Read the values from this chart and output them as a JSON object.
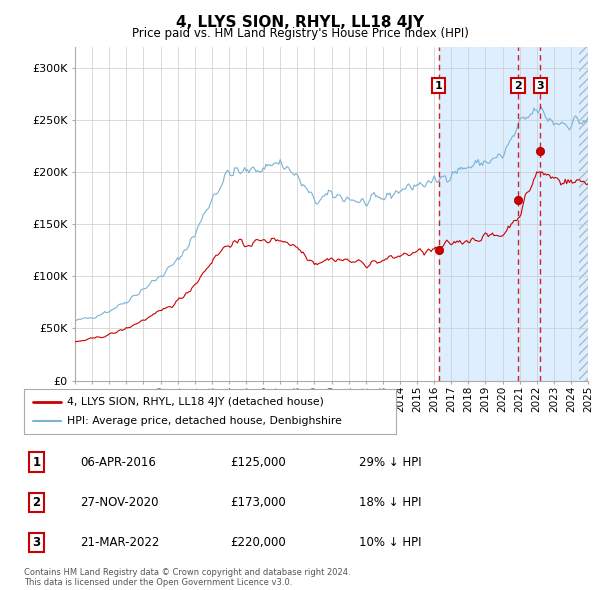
{
  "title": "4, LLYS SION, RHYL, LL18 4JY",
  "subtitle": "Price paid vs. HM Land Registry's House Price Index (HPI)",
  "background_color": "#ffffff",
  "plot_bg": "#ffffff",
  "ylim": [
    0,
    320000
  ],
  "yticks": [
    0,
    50000,
    100000,
    150000,
    200000,
    250000,
    300000
  ],
  "ytick_labels": [
    "£0",
    "£50K",
    "£100K",
    "£150K",
    "£200K",
    "£250K",
    "£300K"
  ],
  "xmin": 1995,
  "xmax": 2025,
  "shade_start": 2016.27,
  "shade_end": 2025,
  "shade_color": "#ddeeff",
  "sale_dates": [
    2016.27,
    2020.91,
    2022.22
  ],
  "sale_prices": [
    125000,
    173000,
    220000
  ],
  "sale_labels": [
    "1",
    "2",
    "3"
  ],
  "sale_info": [
    {
      "label": "1",
      "date": "06-APR-2016",
      "price": "£125,000",
      "pct": "29% ↓ HPI"
    },
    {
      "label": "2",
      "date": "27-NOV-2020",
      "price": "£173,000",
      "pct": "18% ↓ HPI"
    },
    {
      "label": "3",
      "date": "21-MAR-2022",
      "price": "£220,000",
      "pct": "10% ↓ HPI"
    }
  ],
  "legend_entries": [
    {
      "label": "4, LLYS SION, RHYL, LL18 4JY (detached house)",
      "color": "#cc0000",
      "lw": 2
    },
    {
      "label": "HPI: Average price, detached house, Denbighshire",
      "color": "#7ab3d4",
      "lw": 1.5
    }
  ],
  "footer": "Contains HM Land Registry data © Crown copyright and database right 2024.\nThis data is licensed under the Open Government Licence v3.0.",
  "hpi_color": "#7ab3d4",
  "prop_color": "#cc0000",
  "grid_color": "#cccccc"
}
